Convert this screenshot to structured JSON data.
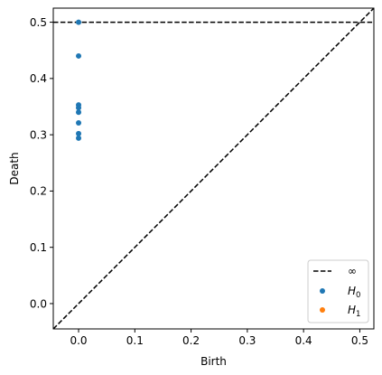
{
  "chart_data": {
    "type": "scatter",
    "xlabel": "Birth",
    "ylabel": "Death",
    "xlim": [
      -0.045,
      0.525
    ],
    "ylim": [
      -0.045,
      0.525
    ],
    "xticks": [
      0.0,
      0.1,
      0.2,
      0.3,
      0.4,
      0.5
    ],
    "yticks": [
      0.0,
      0.1,
      0.2,
      0.3,
      0.4,
      0.5
    ],
    "xtick_labels": [
      "0.0",
      "0.1",
      "0.2",
      "0.3",
      "0.4",
      "0.5"
    ],
    "ytick_labels": [
      "0.0",
      "0.1",
      "0.2",
      "0.3",
      "0.4",
      "0.5"
    ],
    "grid": false,
    "infinity_line": {
      "y": 0.5,
      "style": "dashed",
      "color": "#000000"
    },
    "diagonal": {
      "style": "dashed",
      "color": "#000000"
    },
    "series": [
      {
        "name": "H0",
        "color": "#1f77b4",
        "points": [
          {
            "x": 0.0,
            "y": 0.5
          },
          {
            "x": 0.0,
            "y": 0.44
          },
          {
            "x": 0.0,
            "y": 0.353
          },
          {
            "x": 0.0,
            "y": 0.348
          },
          {
            "x": 0.0,
            "y": 0.34
          },
          {
            "x": 0.0,
            "y": 0.321
          },
          {
            "x": 0.0,
            "y": 0.302
          },
          {
            "x": 0.0,
            "y": 0.294
          }
        ]
      },
      {
        "name": "H1",
        "color": "#ff7f0e",
        "points": []
      }
    ],
    "legend": {
      "placement": "lower-right",
      "entries": [
        {
          "label": "∞",
          "kind": "dashed-line",
          "color": "#000000"
        },
        {
          "label_main": "H",
          "label_sub": "0",
          "kind": "dot",
          "color": "#1f77b4"
        },
        {
          "label_main": "H",
          "label_sub": "1",
          "kind": "dot",
          "color": "#ff7f0e"
        }
      ]
    }
  }
}
